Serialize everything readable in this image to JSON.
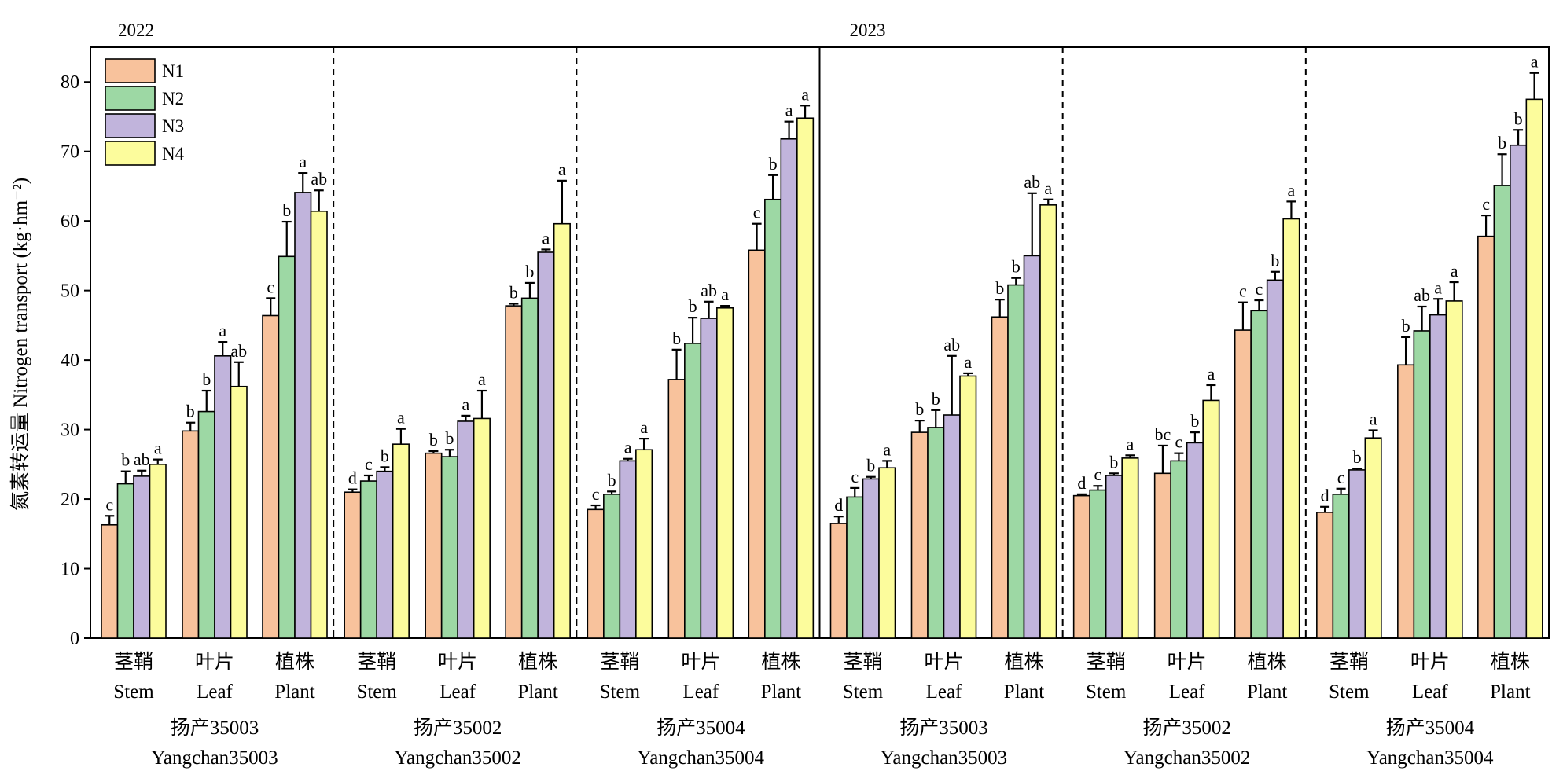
{
  "chart_data": {
    "type": "bar",
    "ylabel": "氮素转运量 Nitrogen transport (kg·hm⁻²)",
    "ylim": [
      0,
      85
    ],
    "yticks": [
      0,
      10,
      20,
      30,
      40,
      50,
      60,
      70,
      80
    ],
    "grid": false,
    "legend_position": "top-left",
    "series": [
      {
        "name": "N1",
        "color": "#f8c29c"
      },
      {
        "name": "N2",
        "color": "#9dd8a4"
      },
      {
        "name": "N3",
        "color": "#c1b4dc"
      },
      {
        "name": "N4",
        "color": "#fcfc9c"
      }
    ],
    "years": [
      {
        "label": "2022",
        "start_group": 0
      },
      {
        "label": "2023",
        "start_group": 3
      }
    ],
    "groups": [
      {
        "cultivar_zh": "扬产35003",
        "cultivar_en": "Yangchan35003",
        "organs": [
          {
            "zh": "茎鞘",
            "en": "Stem",
            "values": [
              16.3,
              22.2,
              23.3,
              25.0
            ],
            "errors": [
              1.3,
              1.8,
              0.8,
              0.7
            ],
            "letters": [
              "c",
              "b",
              "ab",
              "a"
            ]
          },
          {
            "zh": "叶片",
            "en": "Leaf",
            "values": [
              29.8,
              32.6,
              40.6,
              36.2
            ],
            "errors": [
              1.2,
              3.0,
              2.0,
              3.5
            ],
            "letters": [
              "b",
              "b",
              "a",
              "ab"
            ]
          },
          {
            "zh": "植株",
            "en": "Plant",
            "values": [
              46.4,
              54.9,
              64.1,
              61.4
            ],
            "errors": [
              2.5,
              5.0,
              2.8,
              3.0
            ],
            "letters": [
              "c",
              "b",
              "a",
              "ab"
            ]
          }
        ]
      },
      {
        "cultivar_zh": "扬产35002",
        "cultivar_en": "Yangchan35002",
        "organs": [
          {
            "zh": "茎鞘",
            "en": "Stem",
            "values": [
              21.0,
              22.6,
              24.0,
              27.9
            ],
            "errors": [
              0.4,
              0.8,
              0.6,
              2.2
            ],
            "letters": [
              "d",
              "c",
              "b",
              "a"
            ]
          },
          {
            "zh": "叶片",
            "en": "Leaf",
            "values": [
              26.6,
              26.1,
              31.2,
              31.6
            ],
            "errors": [
              0.3,
              1.0,
              0.8,
              4.0
            ],
            "letters": [
              "b",
              "b",
              "a",
              "a"
            ]
          },
          {
            "zh": "植株",
            "en": "Plant",
            "values": [
              47.8,
              48.9,
              55.5,
              59.6
            ],
            "errors": [
              0.3,
              2.2,
              0.4,
              6.2
            ],
            "letters": [
              "b",
              "b",
              "a",
              "a"
            ]
          }
        ]
      },
      {
        "cultivar_zh": "扬产35004",
        "cultivar_en": "Yangchan35004",
        "organs": [
          {
            "zh": "茎鞘",
            "en": "Stem",
            "values": [
              18.5,
              20.7,
              25.5,
              27.1
            ],
            "errors": [
              0.6,
              0.4,
              0.3,
              1.6
            ],
            "letters": [
              "c",
              "b",
              "a",
              "a"
            ]
          },
          {
            "zh": "叶片",
            "en": "Leaf",
            "values": [
              37.2,
              42.4,
              46.0,
              47.5
            ],
            "errors": [
              4.3,
              3.7,
              2.4,
              0.3
            ],
            "letters": [
              "b",
              "b",
              "ab",
              "a"
            ]
          },
          {
            "zh": "植株",
            "en": "Plant",
            "values": [
              55.8,
              63.1,
              71.8,
              74.8
            ],
            "errors": [
              3.8,
              3.5,
              2.5,
              1.8
            ],
            "letters": [
              "c",
              "b",
              "a",
              "a"
            ]
          }
        ]
      },
      {
        "cultivar_zh": "扬产35003",
        "cultivar_en": "Yangchan35003",
        "organs": [
          {
            "zh": "茎鞘",
            "en": "Stem",
            "values": [
              16.5,
              20.3,
              22.9,
              24.5
            ],
            "errors": [
              1.0,
              1.3,
              0.3,
              1.0
            ],
            "letters": [
              "d",
              "c",
              "b",
              "a"
            ]
          },
          {
            "zh": "叶片",
            "en": "Leaf",
            "values": [
              29.6,
              30.3,
              32.1,
              37.7
            ],
            "errors": [
              1.7,
              2.5,
              8.5,
              0.4
            ],
            "letters": [
              "b",
              "b",
              "ab",
              "a"
            ]
          },
          {
            "zh": "植株",
            "en": "Plant",
            "values": [
              46.2,
              50.8,
              55.0,
              62.3
            ],
            "errors": [
              2.5,
              1.0,
              9.0,
              0.8
            ],
            "letters": [
              "b",
              "b",
              "ab",
              "a"
            ]
          }
        ]
      },
      {
        "cultivar_zh": "扬产35002",
        "cultivar_en": "Yangchan35002",
        "organs": [
          {
            "zh": "茎鞘",
            "en": "Stem",
            "values": [
              20.5,
              21.3,
              23.4,
              25.9
            ],
            "errors": [
              0.2,
              0.6,
              0.3,
              0.4
            ],
            "letters": [
              "d",
              "c",
              "b",
              "a"
            ]
          },
          {
            "zh": "叶片",
            "en": "Leaf",
            "values": [
              23.7,
              25.5,
              28.1,
              34.2
            ],
            "errors": [
              4.0,
              1.1,
              1.5,
              2.2
            ],
            "letters": [
              "bc",
              "c",
              "b",
              "a"
            ]
          },
          {
            "zh": "植株",
            "en": "Plant",
            "values": [
              44.3,
              47.1,
              51.5,
              60.3
            ],
            "errors": [
              4.0,
              1.5,
              1.2,
              2.5
            ],
            "letters": [
              "c",
              "c",
              "b",
              "a"
            ]
          }
        ]
      },
      {
        "cultivar_zh": "扬产35004",
        "cultivar_en": "Yangchan35004",
        "organs": [
          {
            "zh": "茎鞘",
            "en": "Stem",
            "values": [
              18.1,
              20.7,
              24.2,
              28.8
            ],
            "errors": [
              0.8,
              0.8,
              0.2,
              1.1
            ],
            "letters": [
              "d",
              "c",
              "b",
              "a"
            ]
          },
          {
            "zh": "叶片",
            "en": "Leaf",
            "values": [
              39.3,
              44.2,
              46.5,
              48.5
            ],
            "errors": [
              4.0,
              3.5,
              2.3,
              2.7
            ],
            "letters": [
              "b",
              "ab",
              "a",
              "a"
            ]
          },
          {
            "zh": "植株",
            "en": "Plant",
            "values": [
              57.8,
              65.1,
              70.9,
              77.5
            ],
            "errors": [
              3.0,
              4.5,
              2.2,
              3.8
            ],
            "letters": [
              "c",
              "b",
              "b",
              "a"
            ]
          }
        ]
      }
    ]
  }
}
